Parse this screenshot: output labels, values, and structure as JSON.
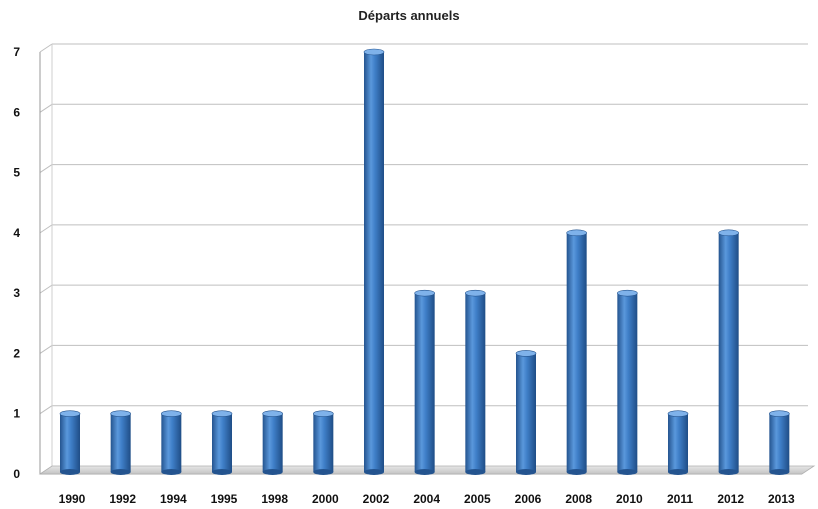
{
  "chart_data": {
    "type": "bar",
    "title": "Départs annuels",
    "xlabel": "",
    "ylabel": "",
    "categories": [
      "1990",
      "1992",
      "1994",
      "1995",
      "1998",
      "2000",
      "2002",
      "2004",
      "2005",
      "2006",
      "2008",
      "2010",
      "2011",
      "2012",
      "2013"
    ],
    "values": [
      1,
      1,
      1,
      1,
      1,
      1,
      7,
      3,
      3,
      2,
      4,
      3,
      1,
      4,
      1
    ],
    "ylim": [
      0,
      7
    ],
    "yticks": [
      "0",
      "1",
      "2",
      "3",
      "4",
      "5",
      "6",
      "7"
    ],
    "grid": true,
    "legend": "none",
    "style": "3d-cylinder",
    "colors": {
      "bar_fill": "#3f7fc8",
      "bar_dark": "#24548f",
      "bar_light": "#7fb2ea",
      "grid": "#bfbfbf",
      "floor": "#c8c8c8"
    }
  }
}
